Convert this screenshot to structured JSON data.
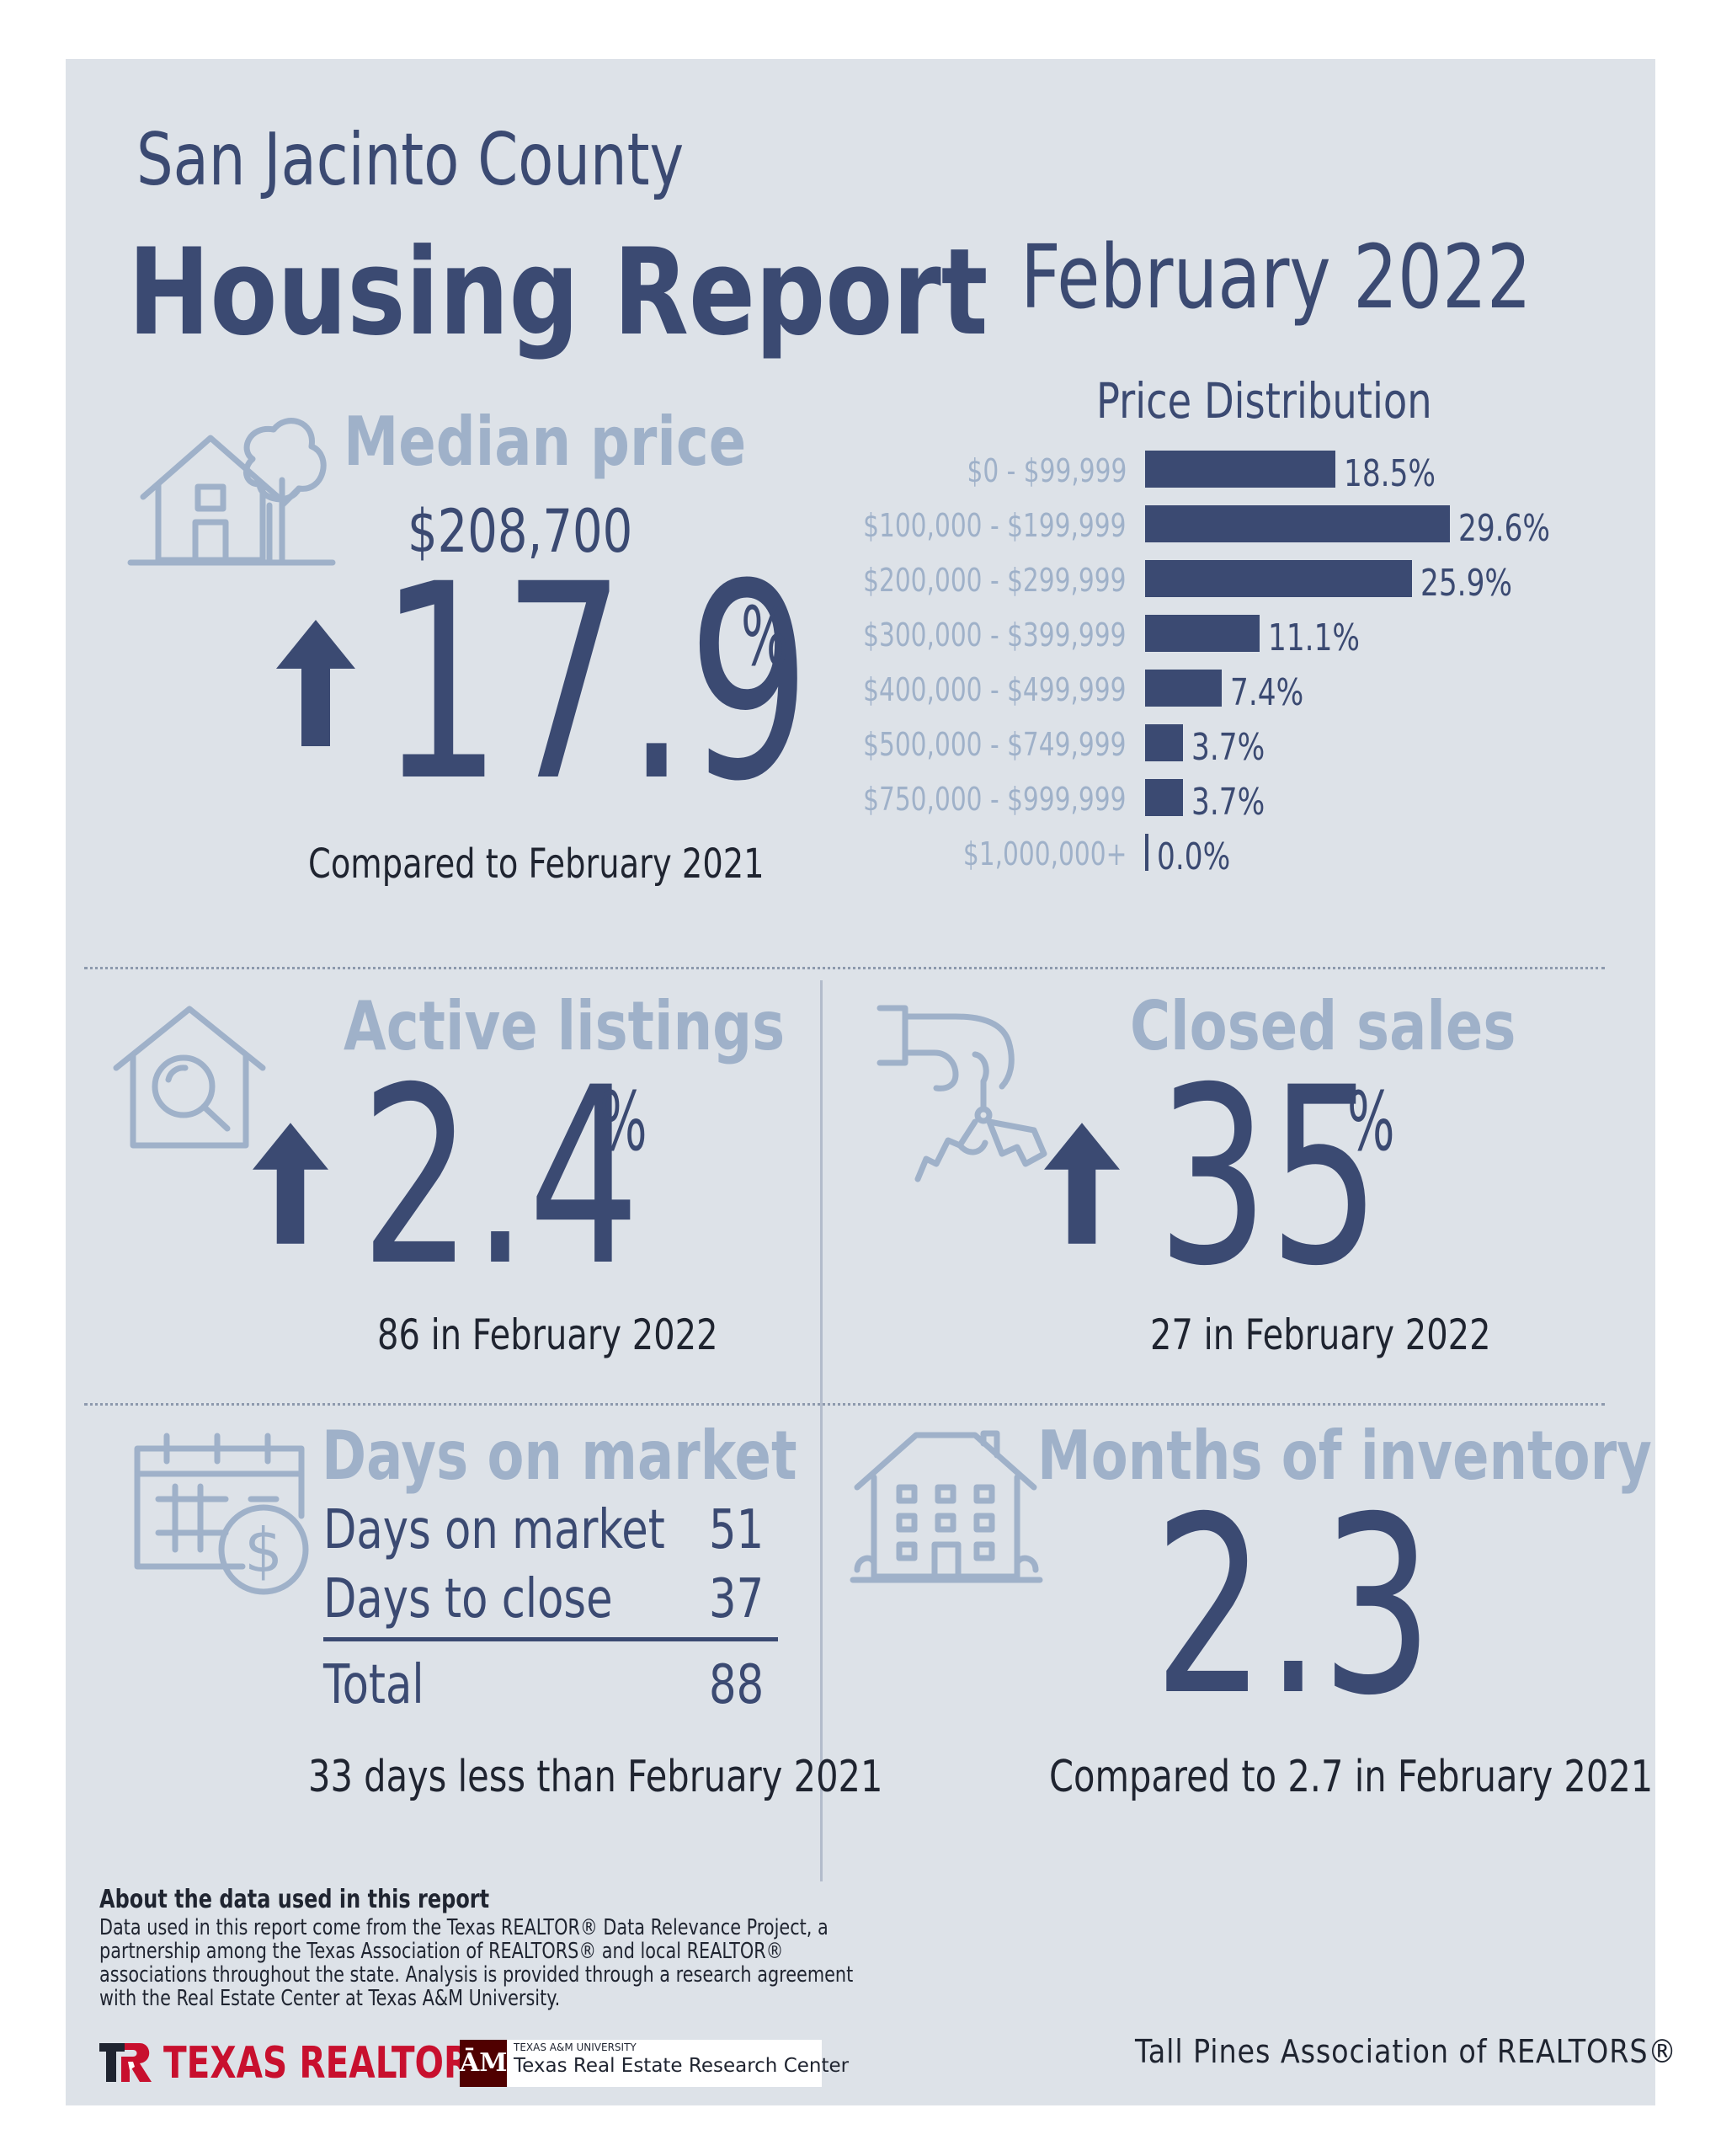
{
  "header": {
    "county": "San Jacinto County",
    "title": "Housing Report",
    "period": "February 2022"
  },
  "median_price": {
    "label": "Median price",
    "value": "$208,700",
    "change": "17.9",
    "unit": "%",
    "direction": "up",
    "note": "Compared to February 2021"
  },
  "price_distribution": {
    "title": "Price Distribution",
    "bar_color": "#3b4a72"
  },
  "chart_data": {
    "type": "bar",
    "orientation": "horizontal",
    "title": "Price Distribution",
    "categories": [
      "$0 - $99,999",
      "$100,000 - $199,999",
      "$200,000 - $299,999",
      "$300,000 - $399,999",
      "$400,000 - $499,999",
      "$500,000 - $749,999",
      "$750,000 - $999,999",
      "$1,000,000+"
    ],
    "values": [
      18.5,
      29.6,
      25.9,
      11.1,
      7.4,
      3.7,
      3.7,
      0.0
    ],
    "labels": [
      "18.5%",
      "29.6%",
      "25.9%",
      "11.1%",
      "7.4%",
      "3.7%",
      "3.7%",
      "0.0%"
    ],
    "xlim": [
      0,
      29.6
    ],
    "grid": false,
    "legend": "none"
  },
  "active_listings": {
    "label": "Active listings",
    "change": "2.4",
    "unit": "%",
    "direction": "up",
    "note": "86 in February 2022"
  },
  "closed_sales": {
    "label": "Closed sales",
    "change": "35",
    "unit": "%",
    "direction": "up",
    "note": "27 in February 2022"
  },
  "days_on_market": {
    "label": "Days on market",
    "rows": [
      {
        "label": "Days on market",
        "value": "51"
      },
      {
        "label": "Days to close",
        "value": "37"
      }
    ],
    "total_label": "Total",
    "total_value": "88",
    "note": "33 days less than February 2021"
  },
  "months_inventory": {
    "label": "Months of inventory",
    "value": "2.3",
    "note": "Compared to 2.7 in February 2021"
  },
  "footer": {
    "about_title": "About the data used in this report",
    "about_lines": [
      "Data used in this report come from the Texas REALTOR® Data Relevance Project, a",
      "partnership among the Texas Association of REALTORS® and local REALTOR®",
      "associations throughout the state. Analysis is provided through a research agreement",
      "with the Real Estate Center at Texas A&M University."
    ],
    "texas_realtors": "TEXAS REALTORS",
    "tamu_small": "TEXAS A&M UNIVERSITY",
    "tamu_name": "Texas Real Estate Research Center",
    "association": "Tall Pines Association of REALTORS®"
  },
  "icons": {
    "median": "house-tree-icon",
    "active": "house-magnifier-icon",
    "closed": "hand-keys-icon",
    "days": "calendar-dollar-icon",
    "inventory": "townhouse-icon",
    "arrow": "arrow-up-icon"
  },
  "colors": {
    "navy": "#3b4a72",
    "light_blue": "#9fb1c9",
    "panel": "#dde2e8",
    "texas_red": "#c8102e",
    "tamu_maroon": "#500000"
  }
}
